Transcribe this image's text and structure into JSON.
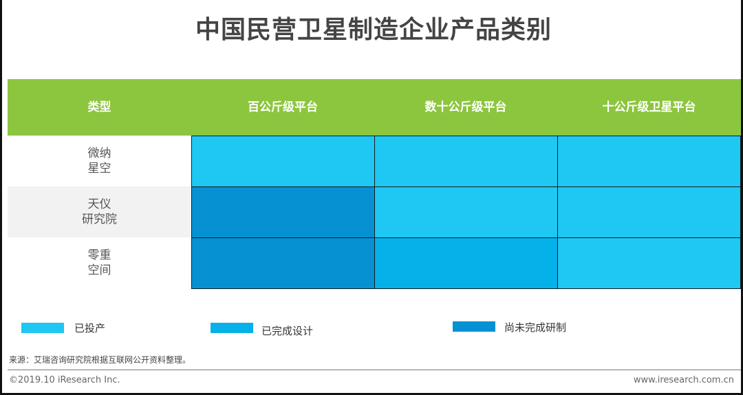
{
  "title": "中国民营卫星制造企业产品类别",
  "chart_data": {
    "type": "heatmap",
    "row_header": "类型",
    "columns": [
      "百公斤级平台",
      "数十公斤级平台",
      "十公斤级卫星平台"
    ],
    "rows": [
      {
        "lines": [
          "微纳",
          "星空"
        ],
        "values": [
          "已投产",
          "已投产",
          "已投产"
        ]
      },
      {
        "lines": [
          "天仪",
          "研究院"
        ],
        "values": [
          "尚未完成研制",
          "已投产",
          "已投产"
        ]
      },
      {
        "lines": [
          "零重",
          "空间"
        ],
        "values": [
          "尚未完成研制",
          "已完成设计",
          "已投产"
        ]
      }
    ],
    "legend": [
      {
        "label": "已投产",
        "color": "#1ec8f2"
      },
      {
        "label": "已完成设计",
        "color": "#06b0e8"
      },
      {
        "label": "尚未完成研制",
        "color": "#0691d3"
      }
    ]
  },
  "source": "来源：艾瑞咨询研究院根据互联网公开资料整理。",
  "footer": {
    "copyright": "©2019.10 iResearch Inc.",
    "website": "www.iresearch.com.cn"
  }
}
